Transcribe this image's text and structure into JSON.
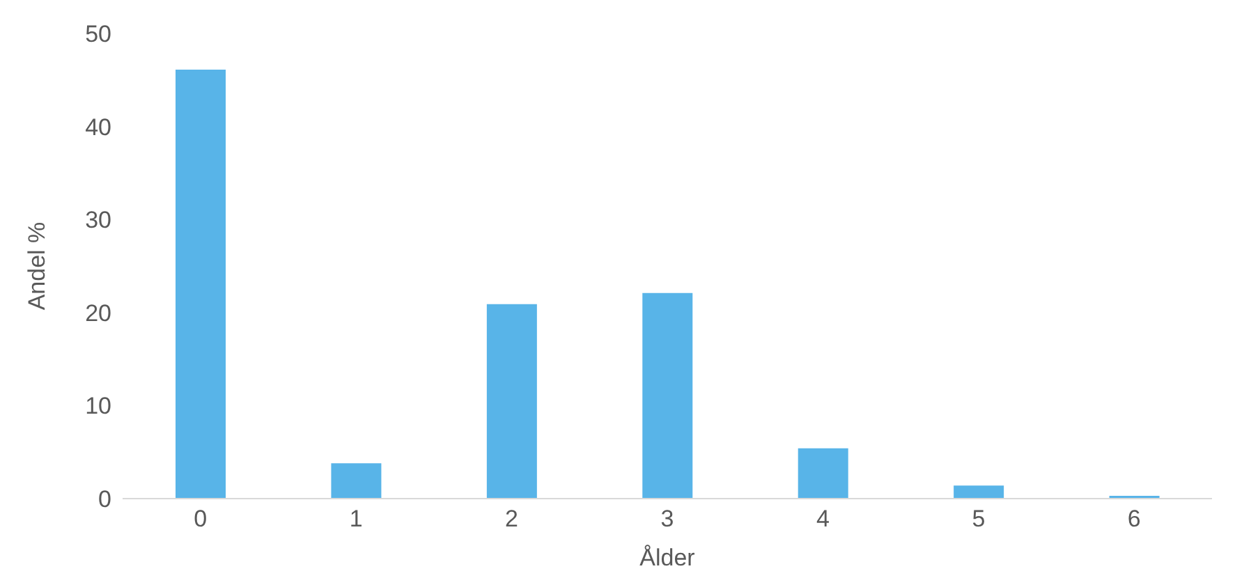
{
  "chart_data": {
    "type": "bar",
    "xlabel": "Ålder",
    "ylabel": "Andel %",
    "categories": [
      "0",
      "1",
      "2",
      "3",
      "4",
      "5",
      "6"
    ],
    "values": [
      46.1,
      3.8,
      20.9,
      22.1,
      5.4,
      1.4,
      0.3
    ],
    "color": "#58b4e8",
    "ylim": [
      0,
      50
    ],
    "yticks": [
      0,
      10,
      20,
      30,
      40,
      50
    ],
    "grid": false,
    "legend": false
  }
}
